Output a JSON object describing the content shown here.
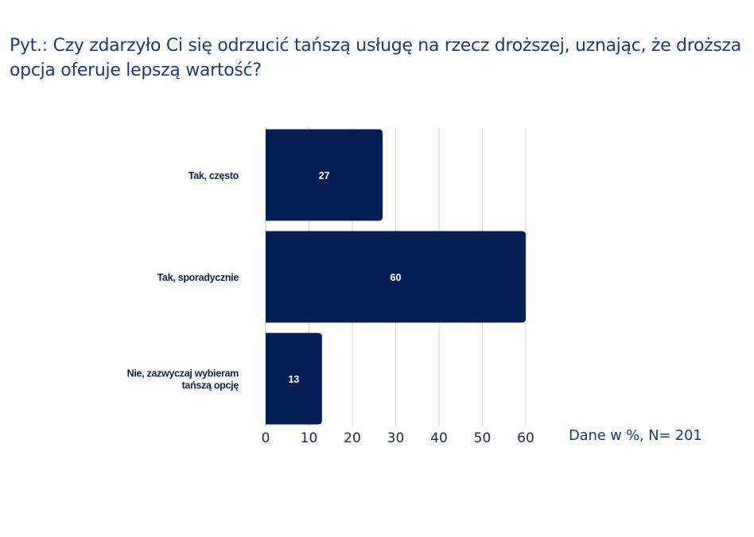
{
  "title": "Pyt.: Czy zdarzyło Ci się odrzucić tańszą usługę na rzecz droższej, uznając, że droższa opcja oferuje lepszą wartość?",
  "note": "Dane w %, N= 201",
  "colors": {
    "bar": "#031e52",
    "title": "#1d3b6e",
    "grid": "#d9d9d9"
  },
  "chart_data": {
    "type": "bar",
    "orientation": "horizontal",
    "title": "Pyt.: Czy zdarzyło Ci się odrzucić tańszą usługę na rzecz droższej, uznając, że droższa opcja oferuje lepszą wartość?",
    "categories": [
      [
        "Tak, często"
      ],
      [
        "Tak, sporadycznie"
      ],
      [
        "Nie, zazwyczaj wybieram",
        "tańszą opcję"
      ]
    ],
    "values": [
      27,
      60,
      13
    ],
    "value_labels": [
      "27",
      "60",
      "13"
    ],
    "xlim": [
      0,
      60
    ],
    "xticks": [
      0,
      10,
      20,
      30,
      40,
      50,
      60
    ],
    "xtick_labels": [
      "0",
      "10",
      "20",
      "30",
      "40",
      "50",
      "60"
    ],
    "xlabel": "",
    "ylabel": "",
    "grid": true,
    "unit": "%"
  }
}
